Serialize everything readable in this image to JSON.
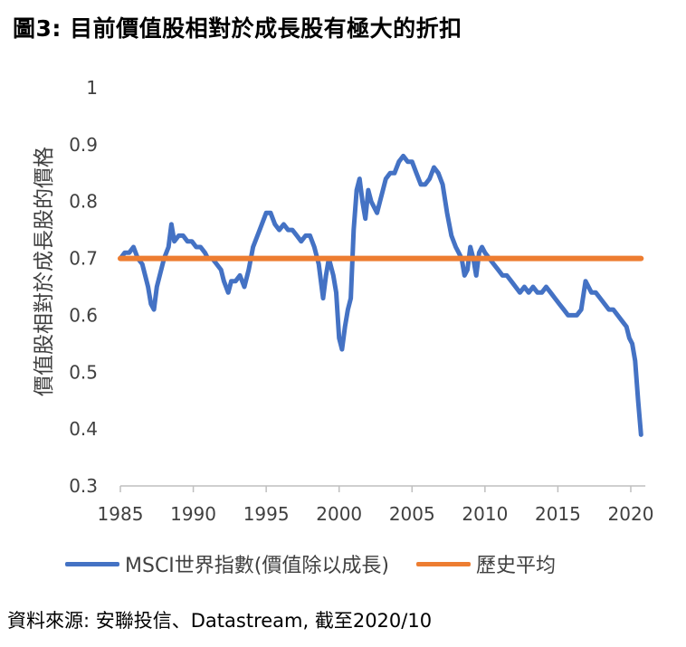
{
  "title": "圖3: 目前價值股相對於成長股有極大的折扣",
  "source": "資料來源: 安聯投信、Datastream, 截至2020/10",
  "colors": {
    "series": "#4472C4",
    "average": "#ED7D31",
    "text": "#404040"
  },
  "chart_data": {
    "type": "line",
    "title": "圖3: 目前價值股相對於成長股有極大的折扣",
    "ylabel": "價值股相對於成長股的價格",
    "xlabel": "",
    "xlim": [
      1985,
      2021
    ],
    "ylim": [
      0.3,
      1
    ],
    "x_ticks": [
      "1985",
      "1990",
      "1995",
      "2000",
      "2005",
      "2010",
      "2015",
      "2020"
    ],
    "y_ticks": [
      "0.3",
      "0.4",
      "0.5",
      "0.6",
      "0.7",
      "0.8",
      "0.9",
      "1"
    ],
    "legend_position": "bottom",
    "grid": false,
    "series": [
      {
        "name": "MSCI世界指數(價值除以成長)",
        "color": "#4472C4",
        "x": [
          1985.0,
          1985.3,
          1985.6,
          1985.9,
          1986.2,
          1986.5,
          1986.7,
          1986.9,
          1987.1,
          1987.3,
          1987.5,
          1987.7,
          1988.0,
          1988.3,
          1988.5,
          1988.7,
          1989.0,
          1989.3,
          1989.6,
          1989.9,
          1990.2,
          1990.5,
          1990.8,
          1991.0,
          1991.3,
          1991.6,
          1991.9,
          1992.1,
          1992.4,
          1992.6,
          1992.9,
          1993.2,
          1993.5,
          1993.8,
          1994.1,
          1994.4,
          1994.7,
          1995.0,
          1995.3,
          1995.6,
          1995.9,
          1996.2,
          1996.5,
          1996.8,
          1997.1,
          1997.4,
          1997.7,
          1998.0,
          1998.3,
          1998.6,
          1998.9,
          1999.1,
          1999.3,
          1999.6,
          1999.8,
          2000.0,
          2000.2,
          2000.4,
          2000.6,
          2000.8,
          2001.0,
          2001.2,
          2001.4,
          2001.6,
          2001.8,
          2002.0,
          2002.2,
          2002.4,
          2002.6,
          2002.8,
          2003.0,
          2003.2,
          2003.5,
          2003.8,
          2004.1,
          2004.4,
          2004.7,
          2005.0,
          2005.3,
          2005.6,
          2005.9,
          2006.2,
          2006.5,
          2006.8,
          2007.1,
          2007.4,
          2007.7,
          2008.0,
          2008.2,
          2008.4,
          2008.6,
          2008.8,
          2009.0,
          2009.2,
          2009.4,
          2009.6,
          2009.8,
          2010.0,
          2010.3,
          2010.6,
          2010.9,
          2011.2,
          2011.5,
          2011.8,
          2012.1,
          2012.4,
          2012.7,
          2013.0,
          2013.3,
          2013.6,
          2013.9,
          2014.2,
          2014.5,
          2014.8,
          2015.1,
          2015.4,
          2015.7,
          2016.0,
          2016.3,
          2016.6,
          2016.9,
          2017.1,
          2017.3,
          2017.6,
          2017.9,
          2018.2,
          2018.5,
          2018.8,
          2019.1,
          2019.4,
          2019.7,
          2019.9,
          2020.1,
          2020.3,
          2020.5,
          2020.7
        ],
        "values": [
          0.7,
          0.71,
          0.71,
          0.72,
          0.7,
          0.69,
          0.67,
          0.65,
          0.62,
          0.61,
          0.65,
          0.67,
          0.7,
          0.72,
          0.76,
          0.73,
          0.74,
          0.74,
          0.73,
          0.73,
          0.72,
          0.72,
          0.71,
          0.7,
          0.7,
          0.69,
          0.68,
          0.66,
          0.64,
          0.66,
          0.66,
          0.67,
          0.65,
          0.68,
          0.72,
          0.74,
          0.76,
          0.78,
          0.78,
          0.76,
          0.75,
          0.76,
          0.75,
          0.75,
          0.74,
          0.73,
          0.74,
          0.74,
          0.72,
          0.69,
          0.63,
          0.67,
          0.7,
          0.67,
          0.64,
          0.56,
          0.54,
          0.58,
          0.61,
          0.63,
          0.75,
          0.82,
          0.84,
          0.8,
          0.77,
          0.82,
          0.8,
          0.79,
          0.78,
          0.8,
          0.82,
          0.84,
          0.85,
          0.85,
          0.87,
          0.88,
          0.87,
          0.87,
          0.85,
          0.83,
          0.83,
          0.84,
          0.86,
          0.85,
          0.83,
          0.78,
          0.74,
          0.72,
          0.71,
          0.7,
          0.67,
          0.68,
          0.72,
          0.7,
          0.67,
          0.71,
          0.72,
          0.71,
          0.7,
          0.69,
          0.68,
          0.67,
          0.67,
          0.66,
          0.65,
          0.64,
          0.65,
          0.64,
          0.65,
          0.64,
          0.64,
          0.65,
          0.64,
          0.63,
          0.62,
          0.61,
          0.6,
          0.6,
          0.6,
          0.61,
          0.66,
          0.65,
          0.64,
          0.64,
          0.63,
          0.62,
          0.61,
          0.61,
          0.6,
          0.59,
          0.58,
          0.56,
          0.55,
          0.52,
          0.45,
          0.39
        ]
      },
      {
        "name": "歷史平均",
        "color": "#ED7D31",
        "x": [
          1985,
          2020.7
        ],
        "values": [
          0.7,
          0.7
        ]
      }
    ]
  }
}
